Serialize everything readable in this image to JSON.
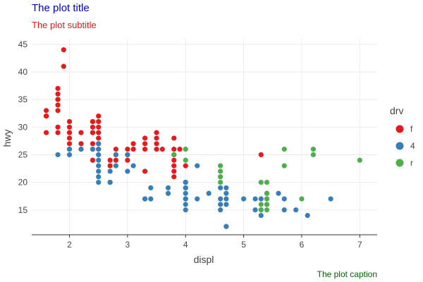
{
  "chart_data": {
    "type": "scatter",
    "title": "The plot title",
    "subtitle": "The plot subtitle",
    "caption": "The plot caption",
    "xlabel": "displ",
    "ylabel": "hwy",
    "xlim": [
      1.35,
      7.3
    ],
    "ylim": [
      10.5,
      46
    ],
    "xticks": [
      2,
      3,
      4,
      5,
      6,
      7
    ],
    "yticks": [
      15,
      20,
      25,
      30,
      35,
      40,
      45
    ],
    "grid": true,
    "legend": {
      "title": "drv",
      "position": "right"
    },
    "series": [
      {
        "name": "f",
        "color": "#e41a1c",
        "x": [
          1.6,
          1.6,
          1.6,
          1.6,
          1.6,
          1.8,
          1.8,
          1.8,
          1.8,
          1.8,
          1.8,
          1.8,
          1.8,
          1.9,
          1.9,
          2.0,
          2.0,
          2.0,
          2.0,
          2.0,
          2.0,
          2.0,
          2.0,
          2.2,
          2.2,
          2.2,
          2.4,
          2.4,
          2.4,
          2.4,
          2.4,
          2.4,
          2.4,
          2.4,
          2.5,
          2.5,
          2.5,
          2.5,
          2.5,
          2.5,
          2.5,
          2.7,
          2.7,
          2.8,
          2.8,
          2.8,
          3.0,
          3.0,
          3.0,
          3.1,
          3.1,
          3.3,
          3.3,
          3.3,
          3.3,
          3.5,
          3.5,
          3.5,
          3.5,
          3.6,
          3.8,
          3.8,
          3.8,
          3.8,
          3.8,
          3.8,
          3.8,
          3.9,
          4.0,
          5.3
        ],
        "y": [
          33,
          32,
          32,
          29,
          32,
          29,
          30,
          33,
          34,
          35,
          36,
          37,
          35,
          44,
          41,
          26,
          27,
          28,
          29,
          30,
          31,
          29,
          26,
          29,
          27,
          26,
          24,
          29,
          30,
          31,
          27,
          31,
          29,
          26,
          28,
          27,
          30,
          31,
          29,
          32,
          26,
          24,
          23,
          26,
          24,
          25,
          26,
          24,
          25,
          27,
          26,
          28,
          27,
          26,
          22,
          26,
          28,
          27,
          29,
          26,
          28,
          26,
          25,
          24,
          23,
          22,
          21,
          26,
          23,
          25
        ]
      },
      {
        "name": "4",
        "color": "#377eb8",
        "x": [
          1.8,
          2.0,
          2.0,
          2.2,
          2.4,
          2.5,
          2.5,
          2.5,
          2.5,
          2.5,
          2.5,
          2.5,
          2.5,
          2.7,
          2.7,
          2.7,
          2.8,
          2.8,
          3.0,
          3.0,
          3.1,
          3.3,
          3.3,
          3.4,
          3.4,
          3.7,
          3.7,
          4.0,
          4.0,
          4.0,
          4.0,
          4.0,
          4.0,
          4.0,
          4.0,
          4.0,
          4.2,
          4.2,
          4.4,
          4.6,
          4.6,
          4.6,
          4.6,
          4.7,
          4.7,
          4.7,
          4.7,
          4.7,
          4.7,
          5.0,
          5.2,
          5.2,
          5.3,
          5.3,
          5.3,
          5.4,
          5.4,
          5.4,
          5.6,
          5.7,
          5.7,
          5.9,
          6.1,
          6.5
        ],
        "y": [
          25,
          26,
          25,
          26,
          26,
          27,
          26,
          25,
          24,
          23,
          22,
          21,
          20,
          22,
          20,
          20,
          25,
          23,
          22,
          25,
          23,
          17,
          17,
          19,
          17,
          19,
          18,
          20,
          19,
          18,
          17,
          15,
          19,
          16,
          17,
          20,
          23,
          17,
          18,
          17,
          15,
          16,
          19,
          12,
          12,
          17,
          18,
          16,
          19,
          17,
          15,
          17,
          15,
          14,
          17,
          16,
          17,
          18,
          18,
          17,
          15,
          15,
          14,
          17
        ]
      },
      {
        "name": "r",
        "color": "#4daf4a",
        "x": [
          3.8,
          4.0,
          4.0,
          4.6,
          4.6,
          4.6,
          4.6,
          5.3,
          5.3,
          5.3,
          5.4,
          5.4,
          5.4,
          5.4,
          5.4,
          5.7,
          5.7,
          6.0,
          6.2,
          6.2,
          7.0
        ],
        "y": [
          25,
          26,
          24,
          23,
          22,
          21,
          20,
          20,
          15,
          16,
          20,
          18,
          17,
          16,
          15,
          26,
          23,
          17,
          26,
          25,
          24
        ]
      }
    ]
  },
  "colors": {
    "title": "#0000cd",
    "subtitle": "#e41a1c",
    "caption": "#006400",
    "grid": "#ebebeb",
    "axis": "#333333"
  }
}
